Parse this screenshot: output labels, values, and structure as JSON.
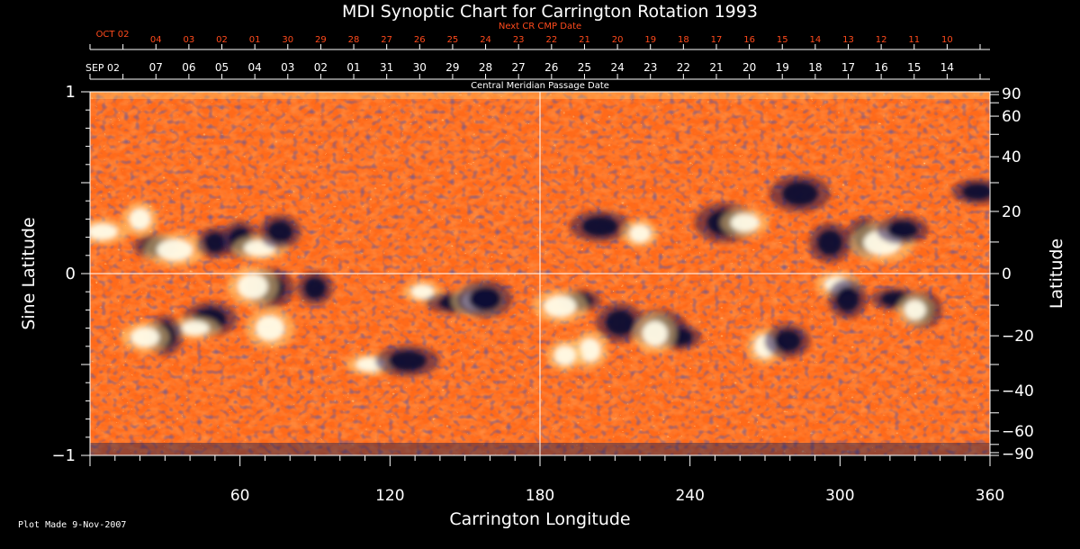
{
  "chart_data": {
    "type": "heatmap",
    "title": "MDI Synoptic Chart for Carrington Rotation 1993",
    "xlabel": "Carrington Longitude",
    "ylabel_left": "Sine Latitude",
    "ylabel_right": "Latitude",
    "xlim": [
      0,
      360
    ],
    "ylim_sine": [
      -1,
      1
    ],
    "x_ticks": [
      "60",
      "120",
      "180",
      "240",
      "300",
      "360"
    ],
    "x_tick_values": [
      60,
      120,
      180,
      240,
      300,
      360
    ],
    "y_left_ticks": [
      {
        "label": "1",
        "value": 1
      },
      {
        "label": "0",
        "value": 0
      },
      {
        "label": "−1",
        "value": -1
      }
    ],
    "y_right_ticks": [
      {
        "label": "90",
        "lat": 90
      },
      {
        "label": "60",
        "lat": 60
      },
      {
        "label": "40",
        "lat": 40
      },
      {
        "label": "20",
        "lat": 20
      },
      {
        "label": "0",
        "lat": 0
      },
      {
        "label": "−20",
        "lat": -20
      },
      {
        "label": "−40",
        "lat": -40
      },
      {
        "label": "−60",
        "lat": -60
      },
      {
        "label": "−90",
        "lat": -90
      }
    ],
    "top_axis_1": {
      "title": "Next CR CMP Date",
      "first_label": "OCT 02",
      "labels": [
        "04",
        "03",
        "02",
        "01",
        "30",
        "29",
        "28",
        "27",
        "26",
        "25",
        "24",
        "23",
        "22",
        "21",
        "20",
        "19",
        "18",
        "17",
        "16",
        "15",
        "14",
        "13",
        "12",
        "11",
        "10"
      ],
      "color": "#ff4a1c"
    },
    "top_axis_2": {
      "title": "Central Meridian Passage Date",
      "first_label": "SEP 02",
      "labels": [
        "07",
        "06",
        "05",
        "04",
        "03",
        "02",
        "01",
        "31",
        "30",
        "29",
        "28",
        "27",
        "26",
        "25",
        "24",
        "23",
        "22",
        "21",
        "20",
        "19",
        "18",
        "17",
        "16",
        "15",
        "14"
      ],
      "color": "#ffffff"
    },
    "grid": "lines at longitude 180 and sine latitude 0",
    "colormap": [
      "#ffffff",
      "#ffd27a",
      "#ff7a1e",
      "#e8401a",
      "#9a1c1c",
      "#202060",
      "#000018"
    ],
    "active_regions": [
      {
        "lon": 5,
        "sinlat": 0.23,
        "polarity": "positive"
      },
      {
        "lon": 20,
        "sinlat": 0.3,
        "polarity": "positive"
      },
      {
        "lon": 26,
        "sinlat": 0.15,
        "polarity": "negative"
      },
      {
        "lon": 34,
        "sinlat": 0.13,
        "polarity": "positive"
      },
      {
        "lon": 50,
        "sinlat": 0.17,
        "polarity": "negative"
      },
      {
        "lon": 60,
        "sinlat": 0.19,
        "polarity": "negative"
      },
      {
        "lon": 68,
        "sinlat": 0.14,
        "polarity": "positive"
      },
      {
        "lon": 76,
        "sinlat": 0.23,
        "polarity": "negative"
      },
      {
        "lon": 72,
        "sinlat": -0.08,
        "polarity": "negative"
      },
      {
        "lon": 65,
        "sinlat": -0.07,
        "polarity": "positive"
      },
      {
        "lon": 48,
        "sinlat": -0.25,
        "polarity": "negative"
      },
      {
        "lon": 42,
        "sinlat": -0.3,
        "polarity": "positive"
      },
      {
        "lon": 30,
        "sinlat": -0.34,
        "polarity": "negative"
      },
      {
        "lon": 22,
        "sinlat": -0.35,
        "polarity": "positive"
      },
      {
        "lon": 72,
        "sinlat": -0.3,
        "polarity": "positive"
      },
      {
        "lon": 90,
        "sinlat": -0.08,
        "polarity": "negative"
      },
      {
        "lon": 112,
        "sinlat": -0.5,
        "polarity": "positive"
      },
      {
        "lon": 127,
        "sinlat": -0.48,
        "polarity": "negative"
      },
      {
        "lon": 133,
        "sinlat": -0.1,
        "polarity": "positive"
      },
      {
        "lon": 147,
        "sinlat": -0.16,
        "polarity": "negative"
      },
      {
        "lon": 155,
        "sinlat": -0.15,
        "polarity": "positive"
      },
      {
        "lon": 158,
        "sinlat": -0.14,
        "polarity": "negative"
      },
      {
        "lon": 196,
        "sinlat": -0.15,
        "polarity": "negative"
      },
      {
        "lon": 188,
        "sinlat": -0.18,
        "polarity": "positive"
      },
      {
        "lon": 200,
        "sinlat": -0.42,
        "polarity": "positive"
      },
      {
        "lon": 190,
        "sinlat": -0.45,
        "polarity": "positive"
      },
      {
        "lon": 212,
        "sinlat": -0.27,
        "polarity": "negative"
      },
      {
        "lon": 228,
        "sinlat": -0.3,
        "polarity": "negative"
      },
      {
        "lon": 236,
        "sinlat": -0.35,
        "polarity": "negative"
      },
      {
        "lon": 226,
        "sinlat": -0.33,
        "polarity": "positive"
      },
      {
        "lon": 204,
        "sinlat": 0.26,
        "polarity": "negative"
      },
      {
        "lon": 220,
        "sinlat": 0.22,
        "polarity": "positive"
      },
      {
        "lon": 254,
        "sinlat": 0.28,
        "polarity": "negative"
      },
      {
        "lon": 262,
        "sinlat": 0.28,
        "polarity": "positive"
      },
      {
        "lon": 284,
        "sinlat": 0.44,
        "polarity": "negative"
      },
      {
        "lon": 296,
        "sinlat": 0.17,
        "polarity": "negative"
      },
      {
        "lon": 299,
        "sinlat": -0.06,
        "polarity": "positive"
      },
      {
        "lon": 303,
        "sinlat": -0.14,
        "polarity": "negative"
      },
      {
        "lon": 310,
        "sinlat": 0.2,
        "polarity": "negative"
      },
      {
        "lon": 317,
        "sinlat": 0.17,
        "polarity": "positive"
      },
      {
        "lon": 325,
        "sinlat": 0.24,
        "polarity": "negative"
      },
      {
        "lon": 322,
        "sinlat": -0.14,
        "polarity": "negative"
      },
      {
        "lon": 333,
        "sinlat": -0.2,
        "polarity": "negative"
      },
      {
        "lon": 330,
        "sinlat": -0.2,
        "polarity": "positive"
      },
      {
        "lon": 355,
        "sinlat": 0.45,
        "polarity": "negative"
      },
      {
        "lon": 270,
        "sinlat": -0.4,
        "polarity": "positive"
      },
      {
        "lon": 279,
        "sinlat": -0.37,
        "polarity": "negative"
      }
    ]
  },
  "footer": {
    "plot_made": "Plot Made  9-Nov-2007"
  }
}
